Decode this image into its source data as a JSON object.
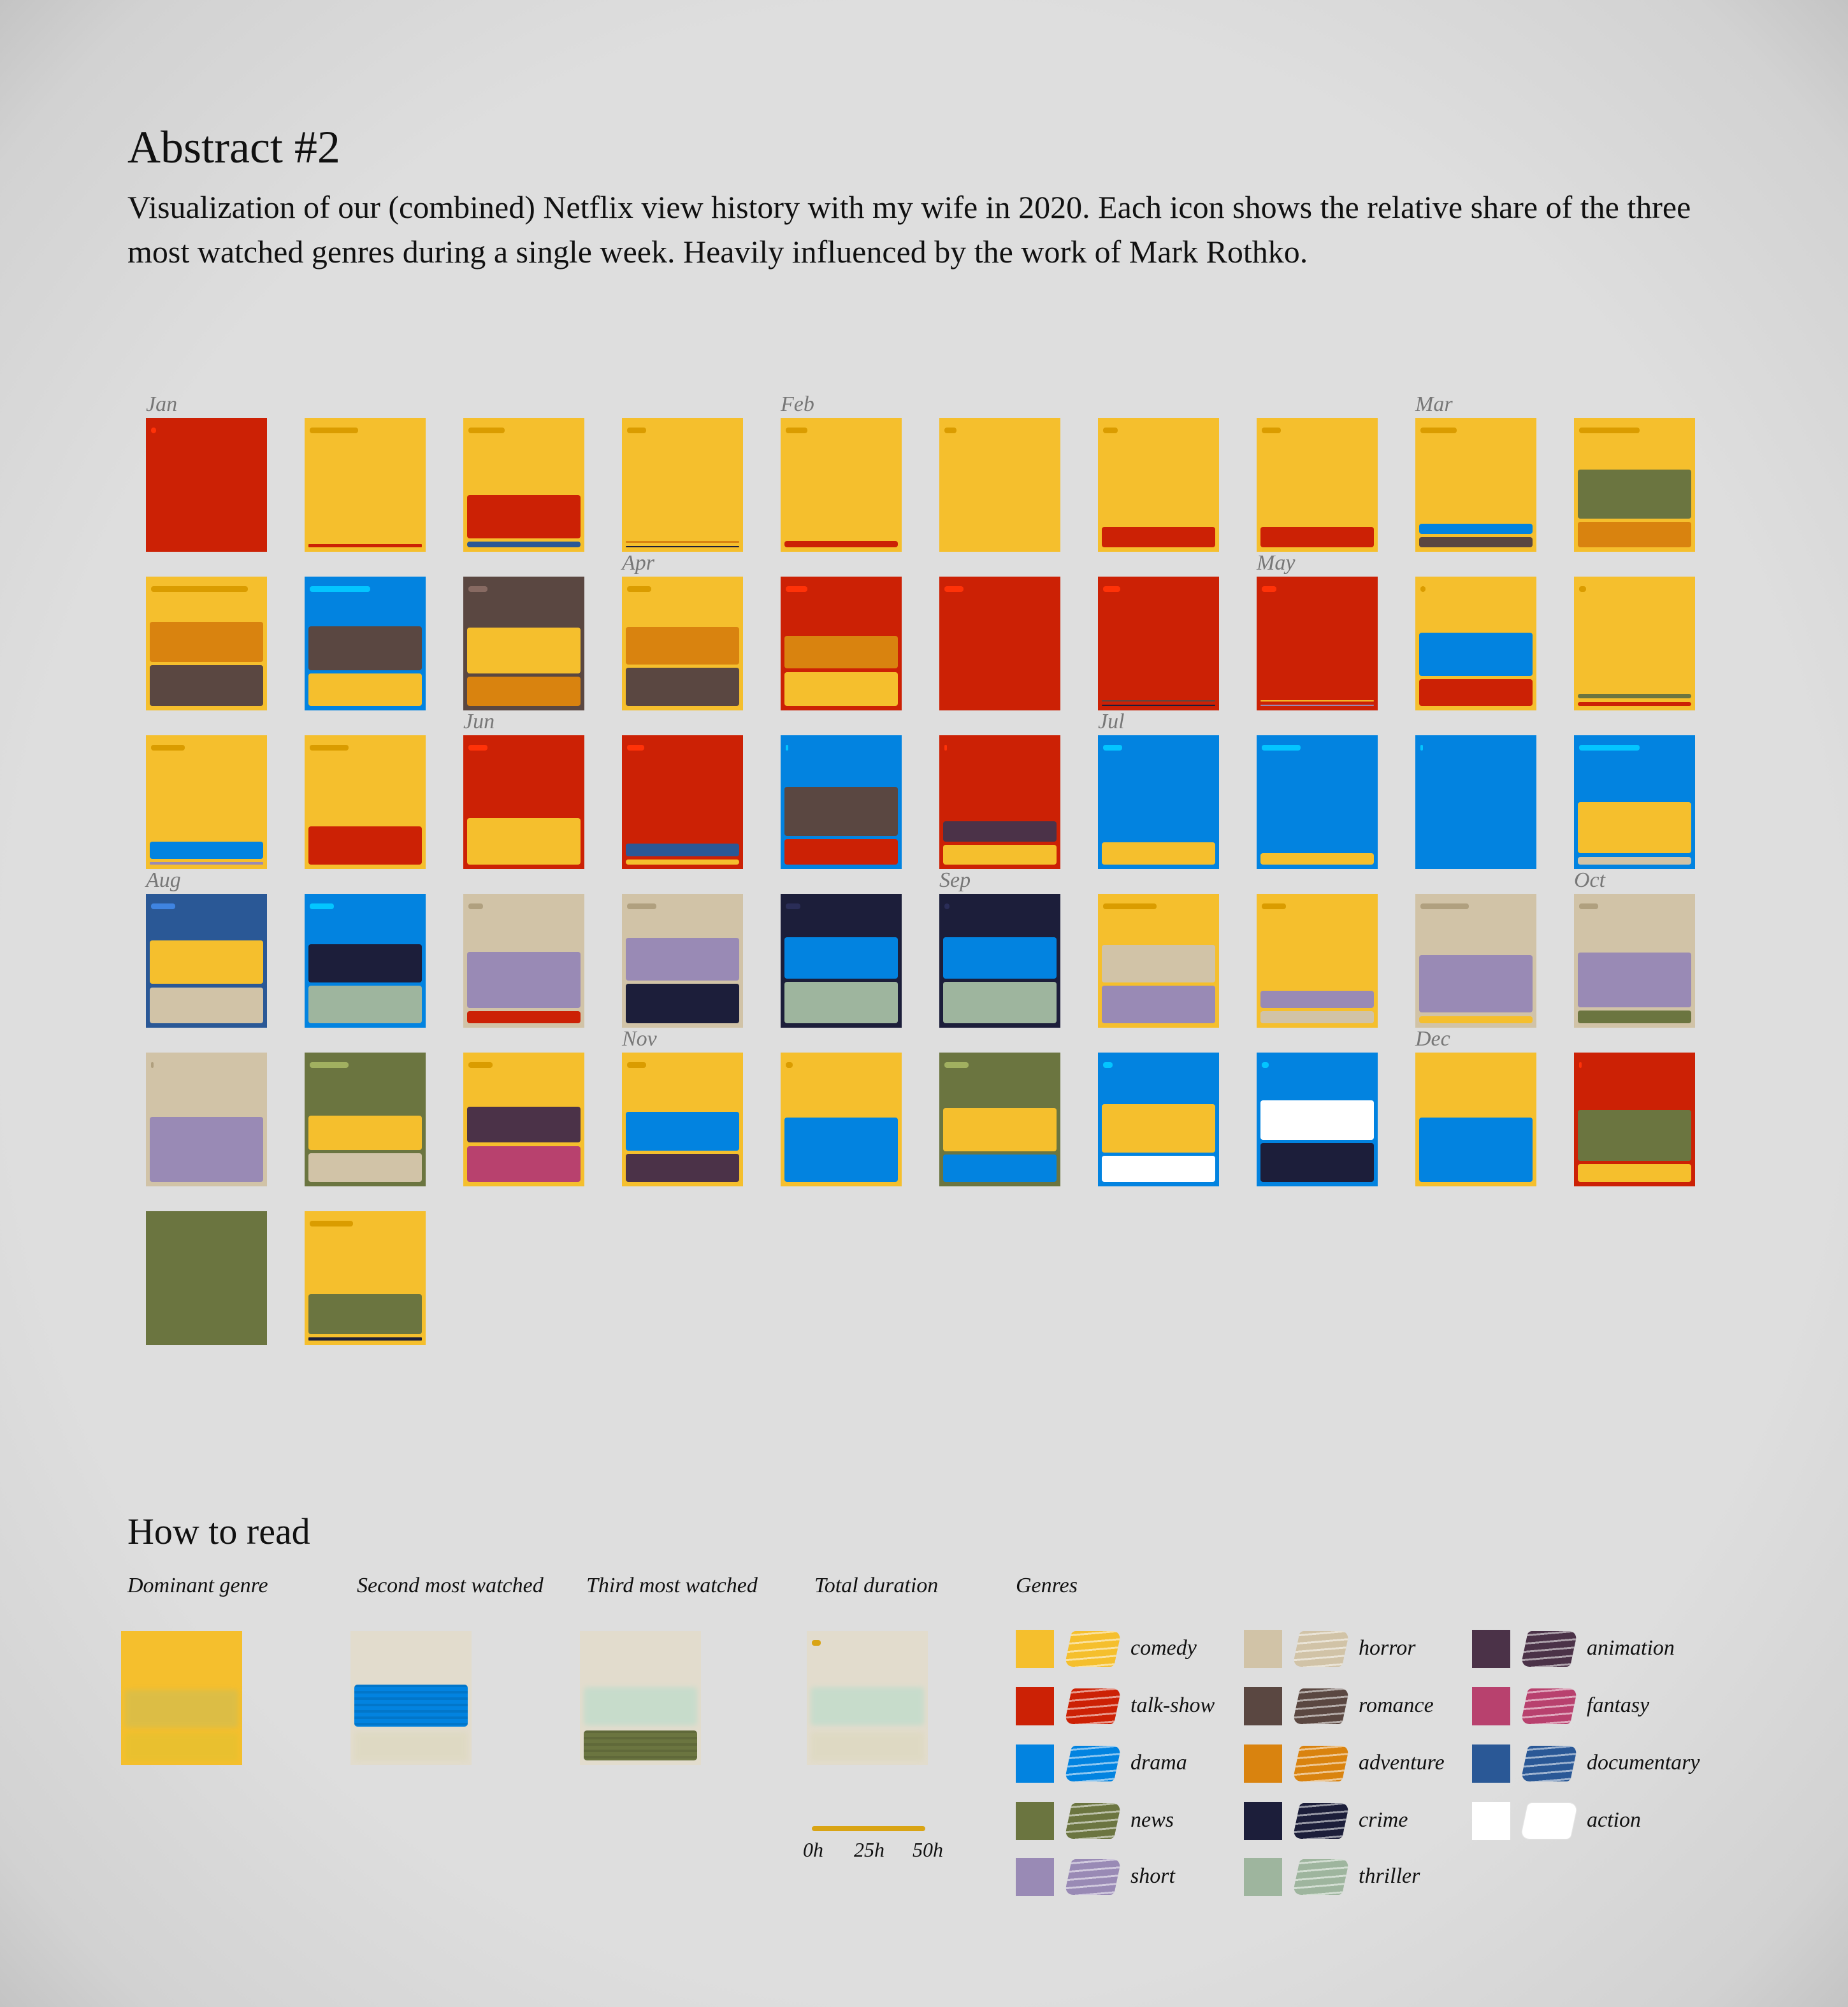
{
  "title": "Abstract #2",
  "description": "Visualization of our (combined) Netflix view history with my wife in 2020. Each icon shows the relative share of the three most watched genres during a single week. Heavily influenced by the work of Mark Rothko.",
  "colors": {
    "background": "#dddddd",
    "genres": {
      "comedy": "#f5bf2d",
      "talk-show": "#cc2105",
      "drama": "#0283e0",
      "news": "#6b7540",
      "short": "#998ab5",
      "horror": "#d1c3a7",
      "romance": "#5a4741",
      "adventure": "#d9830f",
      "crime": "#1c1e3a",
      "thriller": "#9eb59e",
      "animation": "#4b3248",
      "fantasy": "#b8416e",
      "documentary": "#2a5896",
      "action": "#ffffff"
    }
  },
  "chart_data": {
    "type": "grid",
    "title": "Abstract #2",
    "encoding": {
      "background": "dominant genre",
      "bands": "second and third most watched genres (share of icon height)",
      "top_mark": "total duration (0h–50h)"
    },
    "weeks": [
      {
        "month": "Jan",
        "dominant": "talk-show",
        "bands": [],
        "hours": 2
      },
      {
        "dominant": "comedy",
        "bands": [
          [
            "talk-show",
            0.024
          ]
        ],
        "hours": 20
      },
      {
        "dominant": "comedy",
        "bands": [
          [
            "talk-show",
            0.32
          ],
          [
            "documentary",
            0.045
          ]
        ],
        "hours": 15
      },
      {
        "dominant": "comedy",
        "bands": [
          [
            "adventure",
            0.013
          ],
          [
            "crime",
            0.011
          ]
        ],
        "hours": 8
      },
      {
        "month": "Feb",
        "dominant": "comedy",
        "bands": [
          [
            "talk-show",
            0.05
          ]
        ],
        "hours": 9
      },
      {
        "dominant": "comedy",
        "bands": [],
        "hours": 5
      },
      {
        "dominant": "comedy",
        "bands": [
          [
            "talk-show",
            0.155
          ]
        ],
        "hours": 6
      },
      {
        "dominant": "comedy",
        "bands": [
          [
            "talk-show",
            0.155
          ]
        ],
        "hours": 8
      },
      {
        "month": "Mar",
        "dominant": "comedy",
        "bands": [
          [
            "drama",
            0.076
          ],
          [
            "romance",
            0.076
          ]
        ],
        "hours": 15
      },
      {
        "dominant": "comedy",
        "bands": [
          [
            "news",
            0.365
          ],
          [
            "adventure",
            0.19
          ]
        ],
        "hours": 25
      },
      {
        "dominant": "comedy",
        "bands": [
          [
            "adventure",
            0.3
          ],
          [
            "romance",
            0.305
          ]
        ],
        "hours": 40
      },
      {
        "dominant": "drama",
        "bands": [
          [
            "romance",
            0.325
          ],
          [
            "comedy",
            0.245
          ]
        ],
        "hours": 25
      },
      {
        "dominant": "romance",
        "bands": [
          [
            "comedy",
            0.34
          ],
          [
            "adventure",
            0.22
          ]
        ],
        "hours": 8
      },
      {
        "month": "Apr",
        "dominant": "comedy",
        "bands": [
          [
            "adventure",
            0.28
          ],
          [
            "romance",
            0.285
          ]
        ],
        "hours": 10
      },
      {
        "dominant": "talk-show",
        "bands": [
          [
            "adventure",
            0.245
          ],
          [
            "comedy",
            0.255
          ]
        ],
        "hours": 9
      },
      {
        "dominant": "talk-show",
        "bands": [],
        "hours": 8
      },
      {
        "dominant": "talk-show",
        "bands": [
          [
            "romance",
            0.004
          ],
          [
            "crime",
            0.004
          ]
        ],
        "hours": 7
      },
      {
        "month": "May",
        "dominant": "talk-show",
        "bands": [
          [
            "comedy",
            0.01
          ],
          [
            "short",
            0.01
          ]
        ],
        "hours": 6
      },
      {
        "dominant": "comedy",
        "bands": [
          [
            "drama",
            0.325
          ],
          [
            "talk-show",
            0.2
          ]
        ],
        "hours": 2
      },
      {
        "dominant": "comedy",
        "bands": [
          [
            "news",
            0.035
          ],
          [
            "talk-show",
            0.032
          ]
        ],
        "hours": 3
      },
      {
        "dominant": "comedy",
        "bands": [
          [
            "drama",
            0.127
          ],
          [
            "short",
            0.02
          ]
        ],
        "hours": 14
      },
      {
        "dominant": "comedy",
        "bands": [
          [
            "talk-show",
            0.285
          ]
        ],
        "hours": 16
      },
      {
        "month": "Jun",
        "dominant": "talk-show",
        "bands": [
          [
            "comedy",
            0.35
          ]
        ],
        "hours": 8
      },
      {
        "dominant": "talk-show",
        "bands": [
          [
            "documentary",
            0.092
          ],
          [
            "comedy",
            0.04
          ]
        ],
        "hours": 7
      },
      {
        "dominant": "drama",
        "bands": [
          [
            "romance",
            0.365
          ],
          [
            "talk-show",
            0.19
          ]
        ],
        "hours": 1
      },
      {
        "dominant": "talk-show",
        "bands": [
          [
            "animation",
            0.15
          ],
          [
            "comedy",
            0.15
          ]
        ],
        "hours": 1
      },
      {
        "month": "Jul",
        "dominant": "drama",
        "bands": [
          [
            "comedy",
            0.17
          ]
        ],
        "hours": 8
      },
      {
        "dominant": "drama",
        "bands": [
          [
            "comedy",
            0.085
          ]
        ],
        "hours": 16
      },
      {
        "dominant": "drama",
        "bands": [],
        "hours": 1
      },
      {
        "dominant": "drama",
        "bands": [
          [
            "comedy",
            0.385
          ],
          [
            "horror",
            0.06
          ]
        ],
        "hours": 25
      },
      {
        "month": "Aug",
        "dominant": "documentary",
        "bands": [
          [
            "comedy",
            0.325
          ],
          [
            "horror",
            0.27
          ]
        ],
        "hours": 10
      },
      {
        "dominant": "drama",
        "bands": [
          [
            "crime",
            0.285
          ],
          [
            "thriller",
            0.28
          ]
        ],
        "hours": 10
      },
      {
        "dominant": "horror",
        "bands": [
          [
            "short",
            0.42
          ],
          [
            "talk-show",
            0.09
          ]
        ],
        "hours": 6
      },
      {
        "dominant": "horror",
        "bands": [
          [
            "short",
            0.32
          ],
          [
            "crime",
            0.295
          ]
        ],
        "hours": 12
      },
      {
        "dominant": "crime",
        "bands": [
          [
            "drama",
            0.31
          ],
          [
            "thriller",
            0.31
          ]
        ],
        "hours": 6
      },
      {
        "month": "Sep",
        "dominant": "crime",
        "bands": [
          [
            "drama",
            0.31
          ],
          [
            "thriller",
            0.31
          ]
        ],
        "hours": 2
      },
      {
        "dominant": "comedy",
        "bands": [
          [
            "horror",
            0.28
          ],
          [
            "short",
            0.28
          ]
        ],
        "hours": 22
      },
      {
        "dominant": "comedy",
        "bands": [
          [
            "short",
            0.13
          ],
          [
            "horror",
            0.09
          ]
        ],
        "hours": 10
      },
      {
        "dominant": "horror",
        "bands": [
          [
            "short",
            0.43
          ],
          [
            "comedy",
            0.055
          ]
        ],
        "hours": 20
      },
      {
        "month": "Oct",
        "dominant": "horror",
        "bands": [
          [
            "short",
            0.41
          ],
          [
            "news",
            0.095
          ]
        ],
        "hours": 8
      },
      {
        "dominant": "horror",
        "bands": [
          [
            "short",
            0.485
          ]
        ],
        "hours": 1
      },
      {
        "dominant": "news",
        "bands": [
          [
            "comedy",
            0.255
          ],
          [
            "horror",
            0.215
          ]
        ],
        "hours": 16
      },
      {
        "dominant": "comedy",
        "bands": [
          [
            "animation",
            0.27
          ],
          [
            "fantasy",
            0.27
          ]
        ],
        "hours": 10
      },
      {
        "month": "Nov",
        "dominant": "comedy",
        "bands": [
          [
            "drama",
            0.29
          ],
          [
            "animation",
            0.21
          ]
        ],
        "hours": 8
      },
      {
        "dominant": "comedy",
        "bands": [
          [
            "drama",
            0.48
          ]
        ],
        "hours": 3
      },
      {
        "dominant": "news",
        "bands": [
          [
            "comedy",
            0.325
          ],
          [
            "drama",
            0.205
          ]
        ],
        "hours": 10
      },
      {
        "dominant": "drama",
        "bands": [
          [
            "comedy",
            0.36
          ],
          [
            "action",
            0.195
          ]
        ],
        "hours": 4
      },
      {
        "dominant": "drama",
        "bands": [
          [
            "action",
            0.295
          ],
          [
            "crime",
            0.29
          ]
        ],
        "hours": 3
      },
      {
        "month": "Dec",
        "dominant": "comedy",
        "bands": [
          [
            "drama",
            0.48
          ]
        ],
        "hours": 0
      },
      {
        "dominant": "talk-show",
        "bands": [
          [
            "news",
            0.38
          ],
          [
            "comedy",
            0.135
          ]
        ],
        "hours": 1
      },
      {
        "dominant": "news",
        "bands": [],
        "hours": 0
      },
      {
        "dominant": "comedy",
        "bands": [
          [
            "news",
            0.3
          ],
          [
            "crime",
            0.025
          ]
        ],
        "hours": 18
      }
    ]
  },
  "legend": {
    "heading": "How to read",
    "dominant_label": "Dominant genre",
    "second_label": "Second most watched",
    "third_label": "Third most watched",
    "duration_label": "Total duration",
    "genres_label": "Genres",
    "duration_ticks": [
      "0h",
      "25h",
      "50h"
    ],
    "genres": [
      [
        "comedy",
        "talk-show",
        "drama",
        "news",
        "short"
      ],
      [
        "horror",
        "romance",
        "adventure",
        "crime",
        "thriller"
      ],
      [
        "animation",
        "fantasy",
        "documentary",
        "action"
      ]
    ]
  }
}
